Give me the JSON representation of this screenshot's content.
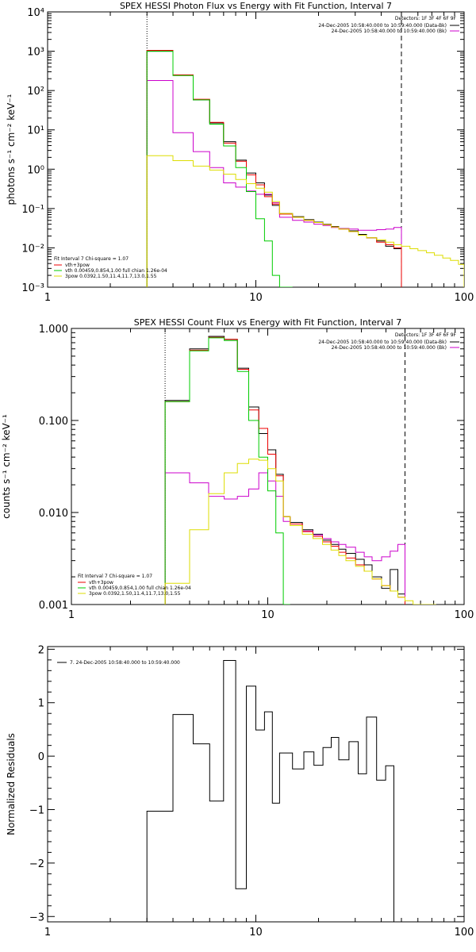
{
  "chart_data": [
    {
      "type": "line",
      "title": "SPEX HESSI Photon Flux vs Energy with Fit Function, Interval 7",
      "ylabel": "photons s⁻¹ cm⁻² keV⁻¹",
      "xlabel": "",
      "xscale": "log",
      "yscale": "log",
      "xlim": [
        1,
        100
      ],
      "ylim": [
        0.001,
        10000
      ],
      "x_ticks": [
        {
          "value": 1,
          "label": "1"
        },
        {
          "value": 10,
          "label": "10"
        },
        {
          "value": 100,
          "label": "100"
        }
      ],
      "y_ticks": [
        {
          "value": 0.001,
          "label": "10⁻³"
        },
        {
          "value": 0.01,
          "label": "10⁻²"
        },
        {
          "value": 0.1,
          "label": "10⁻¹"
        },
        {
          "value": 1,
          "label": "10⁰"
        },
        {
          "value": 10,
          "label": "10¹"
        },
        {
          "value": 100,
          "label": "10²"
        },
        {
          "value": 1000,
          "label": "10³"
        },
        {
          "value": 10000,
          "label": "10⁴"
        }
      ],
      "vlines": [
        {
          "x": 3,
          "style": "dotted",
          "color": "#000000"
        },
        {
          "x": 50,
          "style": "dashed",
          "color": "#000000"
        }
      ],
      "legend_tr": {
        "header": "Detectors: 1F 3F 4F 6F 9F",
        "items": [
          {
            "text": "24-Dec-2005 10:58:40.000 to 10:59:40.000 (Data-Bk)",
            "color": "#000000"
          },
          {
            "text": "24-Dec-2005 10:58:40.000 to 10:59:40.000 (Bk)",
            "color": "#cc00cc"
          }
        ]
      },
      "legend_bl": {
        "header": "Fit Interval  7    Chi-square = 1.07",
        "items": [
          {
            "text": "vth+3pow",
            "color": "#ee0000"
          },
          {
            "text": "vth 0.00459,0.854,1.00  full chian 1.26e-04",
            "color": "#00cc00"
          },
          {
            "text": "3pow 0.0392,1.50,11.4,11.7,13.0,1.55",
            "color": "#dddd00"
          }
        ]
      },
      "edges": [
        3,
        4,
        5,
        6,
        7,
        8,
        9,
        10,
        11,
        12,
        13,
        15,
        17,
        19,
        21,
        23,
        25,
        28,
        31,
        34,
        38,
        42,
        46,
        50,
        55,
        60,
        66,
        72,
        79,
        86,
        94,
        100
      ],
      "series": [
        {
          "name": "Data-Bk",
          "color": "#000000",
          "values": [
            1000,
            245,
            58,
            15,
            5,
            1.7,
            0.8,
            0.45,
            0.22,
            0.12,
            0.075,
            0.062,
            0.052,
            0.045,
            0.04,
            0.035,
            0.031,
            0.027,
            0.022,
            0.018,
            0.015,
            0.011,
            0.0095,
            null,
            null,
            null,
            null,
            null,
            null,
            null,
            null
          ]
        },
        {
          "name": "Bk",
          "color": "#cc00cc",
          "values": [
            180,
            8.5,
            2.8,
            1.1,
            0.45,
            0.35,
            0.28,
            0.23,
            0.23,
            0.14,
            0.06,
            0.05,
            0.045,
            0.04,
            0.037,
            0.033,
            0.031,
            0.03,
            0.028,
            0.028,
            0.029,
            0.03,
            0.033,
            null,
            null,
            null,
            null,
            null,
            null,
            null,
            null
          ]
        },
        {
          "name": "vth+3pow",
          "color": "#ee0000",
          "values": [
            1050,
            250,
            60,
            15.5,
            4.6,
            1.6,
            0.72,
            0.4,
            0.2,
            0.13,
            0.072,
            0.06,
            0.05,
            0.044,
            0.039,
            0.034,
            0.03,
            0.026,
            0.021,
            0.018,
            0.014,
            0.012,
            0.01,
            null,
            null,
            null,
            null,
            null,
            null,
            null,
            null
          ]
        },
        {
          "name": "vth",
          "color": "#00cc00",
          "values": [
            1000,
            240,
            58,
            14,
            3.9,
            1.1,
            0.27,
            0.055,
            0.015,
            0.002,
            0.0003,
            null,
            null,
            null,
            null,
            null,
            null,
            null,
            null,
            null,
            null,
            null,
            null,
            null,
            null,
            null,
            null,
            null,
            null,
            null,
            null
          ]
        },
        {
          "name": "3pow",
          "color": "#dddd00",
          "values": [
            2.2,
            1.65,
            1.2,
            0.95,
            0.75,
            0.55,
            0.43,
            0.33,
            0.26,
            0.15,
            0.075,
            0.06,
            0.05,
            0.044,
            0.039,
            0.034,
            0.03,
            0.026,
            0.021,
            0.018,
            0.016,
            0.014,
            0.012,
            0.011,
            0.0095,
            0.0085,
            0.0075,
            0.0065,
            0.0055,
            0.0048,
            0.0038
          ]
        }
      ]
    },
    {
      "type": "line",
      "title": "SPEX HESSI Count Flux vs Energy with Fit Function, Interval 7",
      "ylabel": "counts s⁻¹ cm⁻² keV⁻¹",
      "xlabel": "",
      "xscale": "log",
      "yscale": "log",
      "xlim": [
        1,
        100
      ],
      "ylim": [
        0.001,
        1.0
      ],
      "x_ticks": [
        {
          "value": 1,
          "label": "1"
        },
        {
          "value": 10,
          "label": "10"
        },
        {
          "value": 100,
          "label": "100"
        }
      ],
      "y_ticks": [
        {
          "value": 0.001,
          "label": "0.001"
        },
        {
          "value": 0.01,
          "label": "0.010"
        },
        {
          "value": 0.1,
          "label": "0.100"
        },
        {
          "value": 1,
          "label": "1.000"
        }
      ],
      "vlines": [
        {
          "x": 3,
          "style": "dotted",
          "color": "#000000"
        },
        {
          "x": 50,
          "style": "dashed",
          "color": "#000000"
        }
      ],
      "legend_tr": {
        "header": "Detectors: 1F 3F 4F 6F 9F",
        "items": [
          {
            "text": "24-Dec-2005 10:58:40.000 to 10:59:40.000 (Data-Bk)",
            "color": "#000000"
          },
          {
            "text": "24-Dec-2005 10:58:40.000 to 10:59:40.000 (Bk)",
            "color": "#cc00cc"
          }
        ]
      },
      "legend_bl": {
        "header": "Fit Interval  7    Chi-square = 1.07",
        "items": [
          {
            "text": "vth+3pow",
            "color": "#ee0000"
          },
          {
            "text": "vth 0.00459,0.854,1.00  full chian 1.26e-04",
            "color": "#00cc00"
          },
          {
            "text": "3pow 0.0392,1.50,11.4,11.7,13.0,1.55",
            "color": "#dddd00"
          }
        ]
      },
      "edges": [
        3,
        4,
        5,
        6,
        7,
        8,
        9,
        10,
        11,
        12,
        13,
        15,
        17,
        19,
        21,
        23,
        25,
        28,
        31,
        34,
        38,
        42,
        46,
        50,
        55,
        60,
        66,
        72,
        79,
        86,
        94,
        100
      ],
      "series": [
        {
          "name": "Data-Bk",
          "color": "#000000",
          "values": [
            0.165,
            0.6,
            0.82,
            0.76,
            0.37,
            0.14,
            0.072,
            0.048,
            0.026,
            0.009,
            0.0078,
            0.0065,
            0.0058,
            0.005,
            0.0045,
            0.004,
            0.0036,
            0.0031,
            0.0027,
            0.002,
            0.0015,
            0.0024,
            0.0013,
            null,
            null,
            null,
            null,
            null,
            null,
            null,
            null
          ]
        },
        {
          "name": "Bk",
          "color": "#cc00cc",
          "values": [
            0.027,
            0.021,
            0.015,
            0.014,
            0.015,
            0.018,
            0.027,
            0.022,
            0.015,
            0.008,
            0.0075,
            0.0063,
            0.0057,
            0.0052,
            0.0048,
            0.0045,
            0.0042,
            0.0037,
            0.0033,
            0.003,
            0.0033,
            0.0038,
            0.0045,
            null,
            null,
            null,
            null,
            null,
            null,
            null,
            null
          ]
        },
        {
          "name": "vth+3pow",
          "color": "#ee0000",
          "values": [
            0.16,
            0.58,
            0.8,
            0.76,
            0.36,
            0.13,
            0.082,
            0.043,
            0.025,
            0.009,
            0.0075,
            0.0062,
            0.0055,
            0.0048,
            0.0043,
            0.0037,
            0.0032,
            0.0027,
            0.0023,
            0.0019,
            0.0016,
            0.0014,
            0.0012,
            null,
            null,
            null,
            null,
            null,
            null,
            null,
            null
          ]
        },
        {
          "name": "vth",
          "color": "#00cc00",
          "values": [
            0.16,
            0.57,
            0.79,
            0.74,
            0.34,
            0.1,
            0.04,
            0.0172,
            0.006,
            0.0008,
            null,
            null,
            null,
            null,
            null,
            null,
            null,
            null,
            null,
            null,
            null,
            null,
            null,
            null,
            null,
            null,
            null,
            null,
            null,
            null,
            null
          ]
        },
        {
          "name": "3pow",
          "color": "#dddd00",
          "values": [
            0.0017,
            0.0065,
            0.016,
            0.027,
            0.034,
            0.038,
            0.037,
            0.03,
            0.022,
            0.009,
            0.0072,
            0.0058,
            0.0052,
            0.0045,
            0.0039,
            0.0034,
            0.003,
            0.0026,
            0.0023,
            0.0019,
            0.0016,
            0.0014,
            0.0012,
            0.0011,
            0.001,
            0.0009,
            0.0008,
            null,
            null,
            null,
            null
          ]
        }
      ]
    },
    {
      "type": "line",
      "title": "",
      "ylabel": "Normalized Residuals",
      "xlabel": "",
      "xscale": "log",
      "yscale": "linear",
      "xlim": [
        1,
        100
      ],
      "ylim": [
        -3.1,
        2.05
      ],
      "x_ticks": [
        {
          "value": 1,
          "label": "1"
        },
        {
          "value": 10,
          "label": "10"
        },
        {
          "value": 100,
          "label": "100"
        }
      ],
      "y_ticks": [
        {
          "value": -3,
          "label": "−3"
        },
        {
          "value": -2,
          "label": "−2"
        },
        {
          "value": -1,
          "label": "−1"
        },
        {
          "value": 0,
          "label": "0"
        },
        {
          "value": 1,
          "label": "1"
        },
        {
          "value": 2,
          "label": "2"
        }
      ],
      "legend_tl": {
        "items": [
          {
            "text": "7. 24-Dec-2005 10:58:40.000 to 10:59:40.000",
            "color": "#000000"
          }
        ]
      },
      "edges": [
        3,
        4,
        5,
        6,
        7,
        8,
        9,
        10,
        11,
        12,
        13,
        15,
        17,
        19,
        21,
        23,
        25,
        28,
        31,
        34,
        38,
        42,
        46,
        50
      ],
      "series": [
        {
          "name": "residuals",
          "color": "#000000",
          "values": [
            -1.03,
            0.78,
            0.23,
            -0.84,
            1.79,
            -2.48,
            1.31,
            0.49,
            0.83,
            -0.88,
            0.06,
            -0.24,
            0.08,
            -0.17,
            0.16,
            0.35,
            -0.07,
            0.27,
            -0.33,
            0.73,
            -0.45,
            -0.18,
            null
          ]
        }
      ]
    }
  ]
}
